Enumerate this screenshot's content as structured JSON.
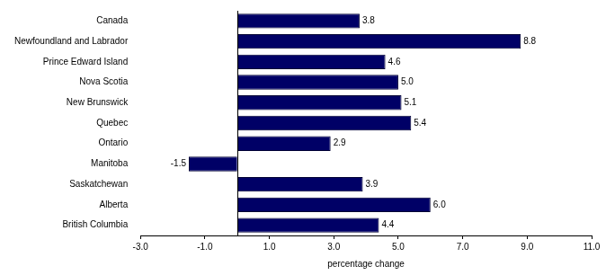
{
  "chart_data": {
    "type": "bar",
    "orientation": "horizontal",
    "x_label": "percentage change",
    "categories": [
      "Canada",
      "Newfoundland and Labrador",
      "Prince Edward Island",
      "Nova Scotia",
      "New Brunswick",
      "Quebec",
      "Ontario",
      "Manitoba",
      "Saskatchewan",
      "Alberta",
      "British Columbia"
    ],
    "values": [
      3.8,
      8.8,
      4.6,
      5.0,
      5.1,
      5.4,
      2.9,
      -1.5,
      3.9,
      6.0,
      4.4
    ],
    "value_labels": [
      "3.8",
      "8.8",
      "4.6",
      "5.0",
      "5.1",
      "5.4",
      "2.9",
      "-1.5",
      "3.9",
      "6.0",
      "4.4"
    ],
    "color": "#000066",
    "xlim": [
      -3,
      11
    ],
    "xticks": [
      {
        "value": -3,
        "label": "-3.0"
      },
      {
        "value": -1,
        "label": "-1.0"
      },
      {
        "value": 1,
        "label": "1.0"
      },
      {
        "value": 3,
        "label": "3.0"
      },
      {
        "value": 5,
        "label": "5.0"
      },
      {
        "value": 7,
        "label": "7.0"
      },
      {
        "value": 9,
        "label": "9.0"
      },
      {
        "value": 11,
        "label": "11.0"
      }
    ],
    "grid": false,
    "data_labels": true
  }
}
